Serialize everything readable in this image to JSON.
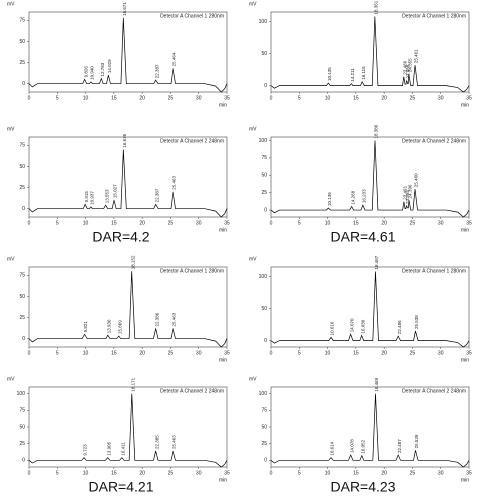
{
  "chart_data": [
    {
      "type": "line",
      "annotation": "Detector A Channel 1 280nm",
      "ylabel": "mV",
      "xlabel": "min",
      "color": "#000000",
      "x": [
        0,
        0.6,
        1.5,
        9.5,
        9.826,
        10.2,
        10.7,
        10.94,
        11.2,
        12.45,
        12.783,
        13.1,
        13.7,
        14.029,
        14.4,
        16.25,
        16.671,
        17.2,
        22.05,
        22.387,
        22.8,
        25.1,
        25.464,
        25.9,
        31,
        33,
        34,
        34.6,
        35
      ],
      "values": [
        0,
        -4,
        0,
        0,
        5,
        0,
        0,
        2,
        0,
        0,
        6,
        0,
        0,
        10,
        0,
        0,
        78,
        0,
        0,
        4,
        0,
        0,
        18,
        0,
        0,
        -3,
        -10,
        -6,
        0
      ],
      "peak_labels": [
        "9.826",
        "10.940",
        "12.783",
        "14.029",
        "16.671",
        "22.387",
        "25.464"
      ],
      "xlim": [
        0,
        35
      ],
      "xticks": [
        0,
        5,
        10,
        15,
        20,
        25,
        30,
        35
      ],
      "ylim": [
        -10,
        85
      ],
      "yticks": [
        0,
        25,
        50,
        75
      ]
    },
    {
      "type": "line",
      "annotation": "Detector A Channel 1 280nm",
      "ylabel": "mV",
      "xlabel": "min",
      "color": "#000000",
      "x": [
        0,
        0.6,
        1.5,
        9.8,
        10.135,
        10.5,
        13.9,
        14.211,
        14.5,
        15.8,
        16.115,
        16.5,
        17.9,
        18.361,
        18.9,
        23.25,
        23.466,
        23.7,
        23.85,
        23.988,
        24.15,
        24.25,
        24.355,
        24.7,
        25.1,
        25.461,
        25.9,
        31,
        33,
        34,
        34.6,
        35
      ],
      "values": [
        0,
        -4,
        0,
        0,
        4,
        0,
        0,
        3,
        0,
        0,
        6,
        0,
        0,
        108,
        0,
        0,
        14,
        2,
        2,
        8,
        3,
        3,
        18,
        0,
        0,
        32,
        0,
        0,
        -3,
        -10,
        -6,
        0
      ],
      "peak_labels": [
        "10.135",
        "14.211",
        "16.115",
        "18.361",
        "23.466",
        "23.988",
        "24.355",
        "25.461"
      ],
      "xlim": [
        0,
        35
      ],
      "xticks": [
        0,
        5,
        10,
        15,
        20,
        25,
        30,
        35
      ],
      "ylim": [
        -10,
        115
      ],
      "yticks": [
        0,
        50,
        100
      ]
    },
    {
      "type": "line",
      "annotation": "Detector A Channel 2 248nm",
      "ylabel": "mV",
      "xlabel": "min",
      "color": "#000000",
      "x": [
        0,
        0.6,
        1.5,
        9.6,
        9.915,
        10.3,
        10.7,
        10.937,
        11.2,
        13.2,
        13.553,
        13.9,
        14.7,
        15.027,
        15.4,
        16.25,
        16.676,
        17.2,
        22.05,
        22.387,
        22.8,
        25.1,
        25.463,
        25.9,
        31,
        33,
        34,
        34.6,
        35
      ],
      "values": [
        0,
        -4,
        0,
        0,
        5,
        0,
        0,
        2,
        0,
        0,
        4,
        0,
        0,
        10,
        0,
        0,
        70,
        0,
        0,
        5,
        0,
        0,
        20,
        0,
        0,
        -3,
        -10,
        -6,
        0
      ],
      "peak_labels": [
        "9.915",
        "10.937",
        "13.553",
        "15.027",
        "16.676",
        "22.387",
        "25.463"
      ],
      "xlim": [
        0,
        35
      ],
      "xticks": [
        0,
        5,
        10,
        15,
        20,
        25,
        30,
        35
      ],
      "ylim": [
        -10,
        85
      ],
      "yticks": [
        0,
        25,
        50,
        75
      ]
    },
    {
      "type": "line",
      "annotation": "Detector A Channel 2 248nm",
      "ylabel": "mV",
      "xlabel": "min",
      "color": "#000000",
      "x": [
        0,
        0.6,
        1.5,
        9.8,
        10.136,
        10.5,
        13.9,
        14.268,
        14.6,
        15.9,
        16.233,
        16.6,
        17.9,
        18.386,
        18.9,
        23.27,
        23.491,
        23.7,
        23.82,
        23.955,
        24.15,
        24.28,
        24.396,
        24.7,
        25.1,
        25.46,
        25.9,
        31,
        33,
        34,
        34.6,
        35
      ],
      "values": [
        0,
        -4,
        0,
        0,
        3,
        0,
        0,
        5,
        0,
        0,
        7,
        0,
        0,
        100,
        0,
        0,
        12,
        2,
        2,
        6,
        3,
        3,
        14,
        0,
        0,
        30,
        0,
        0,
        -3,
        -10,
        -6,
        0
      ],
      "peak_labels": [
        "10.136",
        "14.268",
        "16.233",
        "18.386",
        "23.491",
        "23.955",
        "24.396",
        "25.460"
      ],
      "xlim": [
        0,
        35
      ],
      "xticks": [
        0,
        5,
        10,
        15,
        20,
        25,
        30,
        35
      ],
      "ylim": [
        -10,
        105
      ],
      "yticks": [
        0,
        25,
        50,
        75,
        100
      ]
    },
    {
      "type": "line",
      "annotation": "Detector A Channel 1 280nm",
      "ylabel": "mV",
      "xlabel": "min",
      "color": "#000000",
      "x": [
        0,
        0.6,
        1.5,
        9.4,
        9.821,
        10.3,
        13.6,
        13.936,
        14.3,
        15.5,
        15.869,
        16.2,
        17.7,
        18.152,
        18.7,
        22.0,
        22.386,
        22.8,
        25.1,
        25.463,
        25.9,
        31,
        33,
        34,
        34.6,
        35
      ],
      "values": [
        0,
        -4,
        0,
        0,
        5,
        0,
        0,
        4,
        0,
        0,
        3,
        0,
        0,
        80,
        0,
        0,
        12,
        0,
        0,
        12,
        0,
        0,
        -3,
        -10,
        -6,
        0
      ],
      "peak_labels": [
        "9.821",
        "13.936",
        "15.869",
        "18.152",
        "22.386",
        "25.463"
      ],
      "xlim": [
        0,
        35
      ],
      "xticks": [
        0,
        5,
        10,
        15,
        20,
        25,
        30,
        35
      ],
      "ylim": [
        -10,
        85
      ],
      "yticks": [
        0,
        25,
        50,
        75
      ]
    },
    {
      "type": "line",
      "annotation": "Detector A Channel 1 280nm",
      "ylabel": "mV",
      "xlabel": "min",
      "color": "#000000",
      "x": [
        0,
        0.6,
        1.5,
        10.2,
        10.616,
        11.0,
        13.7,
        14.07,
        14.5,
        15.7,
        16.03,
        16.4,
        18.0,
        18.467,
        19.0,
        22.1,
        22.486,
        22.9,
        25.2,
        25.538,
        26.0,
        31,
        33,
        34,
        34.6,
        35
      ],
      "values": [
        0,
        -4,
        0,
        0,
        5,
        0,
        0,
        10,
        0,
        0,
        8,
        0,
        0,
        108,
        0,
        0,
        7,
        0,
        0,
        15,
        0,
        0,
        -3,
        -10,
        -6,
        0
      ],
      "peak_labels": [
        "10.616",
        "14.070",
        "16.030",
        "18.467",
        "22.486",
        "25.538"
      ],
      "xlim": [
        0,
        35
      ],
      "xticks": [
        0,
        5,
        10,
        15,
        20,
        25,
        30,
        35
      ],
      "ylim": [
        -10,
        115
      ],
      "yticks": [
        0,
        50,
        100
      ]
    },
    {
      "type": "line",
      "annotation": "Detector A Channel 2 248nm",
      "ylabel": "mV",
      "xlabel": "min",
      "color": "#000000",
      "x": [
        0,
        0.6,
        1.5,
        9.3,
        9.723,
        10.1,
        13.5,
        13.905,
        14.3,
        16.0,
        16.411,
        16.8,
        17.7,
        18.171,
        18.7,
        22.0,
        22.385,
        22.8,
        25.1,
        25.463,
        25.9,
        31,
        33,
        34,
        34.6,
        35
      ],
      "values": [
        0,
        -4,
        0,
        0,
        4,
        0,
        0,
        4,
        0,
        0,
        4,
        0,
        0,
        100,
        0,
        0,
        14,
        0,
        0,
        14,
        0,
        0,
        -3,
        -10,
        -6,
        0
      ],
      "peak_labels": [
        "9.723",
        "13.905",
        "16.411",
        "18.171",
        "22.385",
        "25.463"
      ],
      "xlim": [
        0,
        35
      ],
      "xticks": [
        0,
        5,
        10,
        15,
        20,
        25,
        30,
        35
      ],
      "ylim": [
        -10,
        110
      ],
      "yticks": [
        0,
        25,
        50,
        75,
        100
      ]
    },
    {
      "type": "line",
      "annotation": "Detector A Channel 2 248nm",
      "ylabel": "mV",
      "xlabel": "min",
      "color": "#000000",
      "x": [
        0,
        0.6,
        1.5,
        10.2,
        10.614,
        11.0,
        13.7,
        14.078,
        14.5,
        15.7,
        16.052,
        16.4,
        18.0,
        18.469,
        19.0,
        22.1,
        22.487,
        22.9,
        25.2,
        25.539,
        26.0,
        31,
        33,
        34,
        34.6,
        35
      ],
      "values": [
        0,
        -4,
        0,
        0,
        4,
        0,
        0,
        8,
        0,
        0,
        7,
        0,
        0,
        100,
        0,
        0,
        8,
        0,
        0,
        15,
        0,
        0,
        -3,
        -10,
        -6,
        0
      ],
      "peak_labels": [
        "10.614",
        "14.078",
        "16.052",
        "18.469",
        "22.487",
        "25.539"
      ],
      "xlim": [
        0,
        35
      ],
      "xticks": [
        0,
        5,
        10,
        15,
        20,
        25,
        30,
        35
      ],
      "ylim": [
        -10,
        110
      ],
      "yticks": [
        0,
        25,
        50,
        75,
        100
      ]
    }
  ],
  "captions": [
    "DAR=4.2",
    "DAR=4.61",
    "DAR=4.21",
    "DAR=4.23"
  ]
}
